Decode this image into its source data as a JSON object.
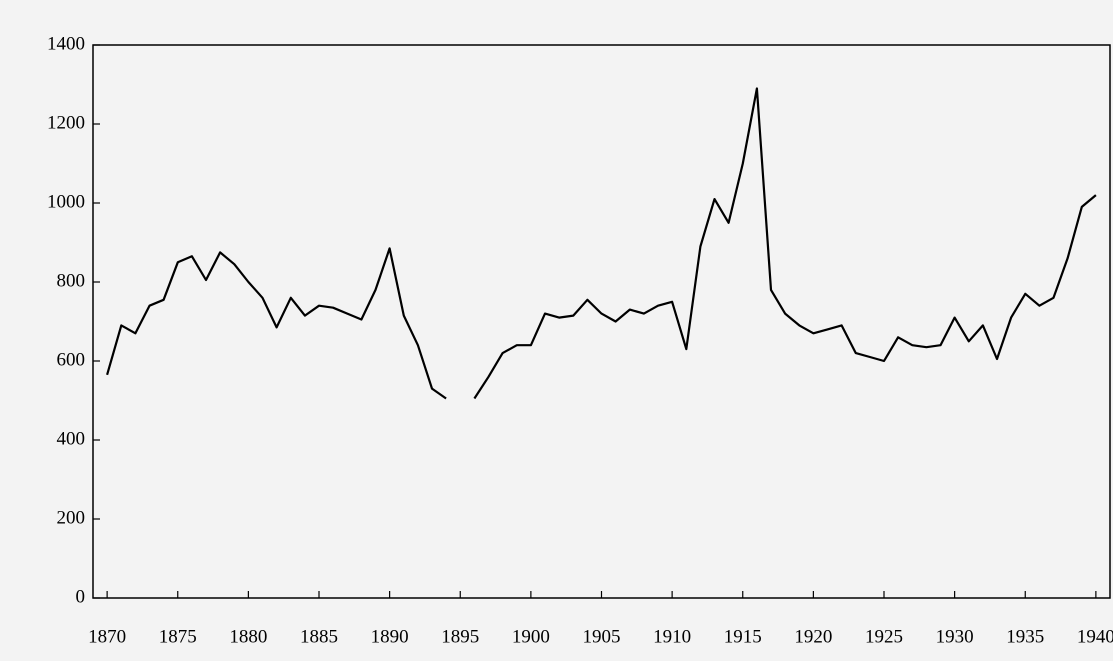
{
  "chart_data": {
    "type": "line",
    "x": [
      1870,
      1871,
      1872,
      1873,
      1874,
      1875,
      1876,
      1877,
      1878,
      1879,
      1880,
      1881,
      1882,
      1883,
      1884,
      1885,
      1886,
      1887,
      1888,
      1889,
      1890,
      1891,
      1892,
      1893,
      1894,
      1895,
      1896,
      1897,
      1898,
      1899,
      1900,
      1901,
      1902,
      1903,
      1904,
      1905,
      1906,
      1907,
      1908,
      1909,
      1910,
      1911,
      1912,
      1913,
      1914,
      1915,
      1916,
      1917,
      1918,
      1919,
      1920,
      1921,
      1922,
      1923,
      1924,
      1925,
      1926,
      1927,
      1928,
      1929,
      1930,
      1931,
      1932,
      1933,
      1934,
      1935,
      1936,
      1937,
      1938,
      1939,
      1940
    ],
    "values": [
      565,
      690,
      670,
      740,
      755,
      850,
      865,
      805,
      875,
      845,
      800,
      760,
      685,
      760,
      715,
      740,
      735,
      720,
      705,
      780,
      885,
      715,
      640,
      530,
      505,
      null,
      505,
      560,
      620,
      640,
      640,
      720,
      710,
      715,
      755,
      720,
      700,
      730,
      720,
      740,
      750,
      630,
      890,
      1010,
      950,
      1100,
      1290,
      780,
      720,
      690,
      670,
      680,
      690,
      620,
      610,
      600,
      660,
      640,
      635,
      640,
      710,
      650,
      690,
      605,
      710,
      770,
      740,
      760,
      860,
      990,
      1020
    ],
    "color": "#000000",
    "xlim": [
      1869,
      1941
    ],
    "xticks": [
      1870,
      1875,
      1880,
      1885,
      1890,
      1895,
      1900,
      1905,
      1910,
      1915,
      1920,
      1925,
      1930,
      1935,
      1940
    ],
    "ylim": [
      0,
      1400
    ],
    "yticks": [
      0,
      200,
      400,
      600,
      800,
      1000,
      1200,
      1400
    ],
    "grid": false
  }
}
